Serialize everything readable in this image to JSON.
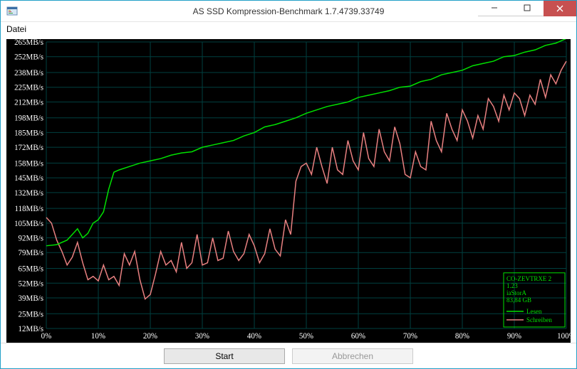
{
  "window": {
    "title": "AS SSD Kompression-Benchmark 1.7.4739.33749"
  },
  "menu": {
    "file": "Datei"
  },
  "buttons": {
    "start": "Start",
    "cancel": "Abbrechen"
  },
  "legend": {
    "device": "CO-ZEVTRXE 2",
    "firmware": "1.23",
    "driver": "iaStorA",
    "capacity": "83,84 GB",
    "read": "Lesen",
    "write": "Schreiben"
  },
  "chart": {
    "type": "line",
    "background_color": "#000000",
    "grid_color": "#004040",
    "axis_text_color": "#ffffff",
    "axis_fontsize": 11,
    "x": {
      "min": 0,
      "max": 100,
      "ticks": [
        0,
        10,
        20,
        30,
        40,
        50,
        60,
        70,
        80,
        90,
        100
      ],
      "tick_labels": [
        "0%",
        "10%",
        "20%",
        "30%",
        "40%",
        "50%",
        "60%",
        "70%",
        "80%",
        "90%",
        "100%"
      ]
    },
    "y": {
      "min": 12,
      "max": 265,
      "ticks": [
        12,
        25,
        39,
        52,
        65,
        79,
        92,
        105,
        118,
        132,
        145,
        158,
        172,
        185,
        198,
        212,
        225,
        238,
        252,
        265
      ],
      "tick_labels": [
        "12MB/s",
        "25MB/s",
        "39MB/s",
        "52MB/s",
        "65MB/s",
        "79MB/s",
        "92MB/s",
        "105MB/s",
        "118MB/s",
        "132MB/s",
        "145MB/s",
        "158MB/s",
        "172MB/s",
        "185MB/s",
        "198MB/s",
        "212MB/s",
        "225MB/s",
        "238MB/s",
        "252MB/s",
        "265MB/s"
      ]
    },
    "series": {
      "read": {
        "color": "#00e000",
        "line_width": 1.5,
        "data": [
          [
            0,
            85
          ],
          [
            2,
            86
          ],
          [
            4,
            90
          ],
          [
            6,
            100
          ],
          [
            7,
            92
          ],
          [
            8,
            96
          ],
          [
            9,
            105
          ],
          [
            10,
            108
          ],
          [
            11,
            115
          ],
          [
            12,
            135
          ],
          [
            13,
            150
          ],
          [
            14,
            152
          ],
          [
            16,
            155
          ],
          [
            18,
            158
          ],
          [
            20,
            160
          ],
          [
            22,
            162
          ],
          [
            24,
            165
          ],
          [
            26,
            167
          ],
          [
            28,
            168
          ],
          [
            30,
            172
          ],
          [
            32,
            174
          ],
          [
            34,
            176
          ],
          [
            36,
            178
          ],
          [
            38,
            182
          ],
          [
            40,
            185
          ],
          [
            42,
            190
          ],
          [
            44,
            192
          ],
          [
            46,
            195
          ],
          [
            48,
            198
          ],
          [
            50,
            202
          ],
          [
            52,
            205
          ],
          [
            54,
            208
          ],
          [
            56,
            210
          ],
          [
            58,
            212
          ],
          [
            60,
            216
          ],
          [
            62,
            218
          ],
          [
            64,
            220
          ],
          [
            66,
            222
          ],
          [
            68,
            225
          ],
          [
            70,
            226
          ],
          [
            72,
            230
          ],
          [
            74,
            232
          ],
          [
            76,
            236
          ],
          [
            78,
            238
          ],
          [
            80,
            240
          ],
          [
            82,
            244
          ],
          [
            84,
            246
          ],
          [
            86,
            248
          ],
          [
            88,
            252
          ],
          [
            90,
            253
          ],
          [
            92,
            256
          ],
          [
            94,
            258
          ],
          [
            96,
            262
          ],
          [
            98,
            264
          ],
          [
            100,
            268
          ]
        ]
      },
      "write": {
        "color": "#e88080",
        "line_width": 1.5,
        "data": [
          [
            0,
            110
          ],
          [
            1,
            105
          ],
          [
            2,
            90
          ],
          [
            3,
            80
          ],
          [
            4,
            68
          ],
          [
            5,
            75
          ],
          [
            6,
            88
          ],
          [
            7,
            70
          ],
          [
            8,
            55
          ],
          [
            9,
            58
          ],
          [
            10,
            54
          ],
          [
            11,
            68
          ],
          [
            12,
            55
          ],
          [
            13,
            58
          ],
          [
            14,
            50
          ],
          [
            15,
            78
          ],
          [
            16,
            68
          ],
          [
            17,
            80
          ],
          [
            18,
            55
          ],
          [
            19,
            38
          ],
          [
            20,
            42
          ],
          [
            21,
            60
          ],
          [
            22,
            80
          ],
          [
            23,
            68
          ],
          [
            24,
            72
          ],
          [
            25,
            62
          ],
          [
            26,
            88
          ],
          [
            27,
            65
          ],
          [
            28,
            70
          ],
          [
            29,
            95
          ],
          [
            30,
            68
          ],
          [
            31,
            70
          ],
          [
            32,
            92
          ],
          [
            33,
            72
          ],
          [
            34,
            74
          ],
          [
            35,
            98
          ],
          [
            36,
            80
          ],
          [
            37,
            72
          ],
          [
            38,
            78
          ],
          [
            39,
            95
          ],
          [
            40,
            85
          ],
          [
            41,
            70
          ],
          [
            42,
            78
          ],
          [
            43,
            100
          ],
          [
            44,
            82
          ],
          [
            45,
            76
          ],
          [
            46,
            108
          ],
          [
            47,
            95
          ],
          [
            48,
            142
          ],
          [
            49,
            155
          ],
          [
            50,
            158
          ],
          [
            51,
            148
          ],
          [
            52,
            172
          ],
          [
            53,
            155
          ],
          [
            54,
            140
          ],
          [
            55,
            172
          ],
          [
            56,
            152
          ],
          [
            57,
            148
          ],
          [
            58,
            178
          ],
          [
            59,
            160
          ],
          [
            60,
            152
          ],
          [
            61,
            185
          ],
          [
            62,
            162
          ],
          [
            63,
            155
          ],
          [
            64,
            188
          ],
          [
            65,
            168
          ],
          [
            66,
            160
          ],
          [
            67,
            190
          ],
          [
            68,
            175
          ],
          [
            69,
            148
          ],
          [
            70,
            145
          ],
          [
            71,
            168
          ],
          [
            72,
            155
          ],
          [
            73,
            152
          ],
          [
            74,
            195
          ],
          [
            75,
            178
          ],
          [
            76,
            168
          ],
          [
            77,
            202
          ],
          [
            78,
            188
          ],
          [
            79,
            178
          ],
          [
            80,
            205
          ],
          [
            81,
            195
          ],
          [
            82,
            180
          ],
          [
            83,
            200
          ],
          [
            84,
            188
          ],
          [
            85,
            215
          ],
          [
            86,
            208
          ],
          [
            87,
            195
          ],
          [
            88,
            218
          ],
          [
            89,
            205
          ],
          [
            90,
            220
          ],
          [
            91,
            215
          ],
          [
            92,
            200
          ],
          [
            93,
            218
          ],
          [
            94,
            210
          ],
          [
            95,
            232
          ],
          [
            96,
            216
          ],
          [
            97,
            236
          ],
          [
            98,
            228
          ],
          [
            99,
            240
          ],
          [
            100,
            248
          ]
        ]
      }
    },
    "legend_box": {
      "border_color": "#00e000",
      "text_color": "#00e000",
      "fontsize": 9,
      "position": "bottom-right"
    }
  }
}
